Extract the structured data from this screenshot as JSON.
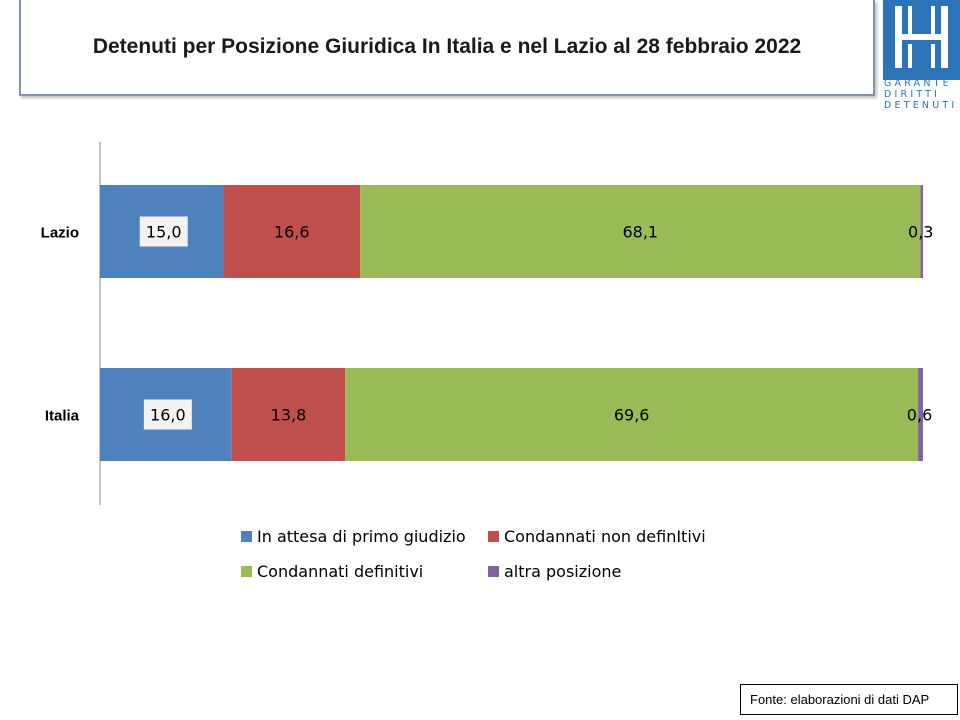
{
  "header": {
    "title": "Detenuti per Posizione Giuridica  In Italia e nel Lazio al 28 febbraio 2022"
  },
  "logo": {
    "icon": "garante-logo-icon",
    "lines": [
      "GARANTE",
      "DIRITTI",
      "DETENUTI"
    ],
    "color": "#2c73b8"
  },
  "chart_data": {
    "type": "bar",
    "orientation": "horizontal",
    "stacked": true,
    "categories": [
      "Lazio",
      "Italia"
    ],
    "series": [
      {
        "name": "In attesa di primo giudizio",
        "values": [
          15.0,
          16.0
        ],
        "labels": [
          "15,0",
          "16,0"
        ],
        "color": "#4f81bd"
      },
      {
        "name": "Condannati non definItivi",
        "values": [
          16.6,
          13.8
        ],
        "labels": [
          "16,6",
          "13,8"
        ],
        "color": "#c0504d"
      },
      {
        "name": "Condannati definitivi",
        "values": [
          68.1,
          69.6
        ],
        "labels": [
          "68,1",
          "69,6"
        ],
        "color": "#9bbb59"
      },
      {
        "name": "altra posizione",
        "values": [
          0.3,
          0.6
        ],
        "labels": [
          "0,3",
          "0,6"
        ],
        "color": "#8064a2"
      }
    ],
    "xlim": [
      0,
      100
    ],
    "grid": false,
    "legend_position": "bottom"
  },
  "footer": {
    "source": "Fonte: elaborazioni di dati DAP"
  }
}
